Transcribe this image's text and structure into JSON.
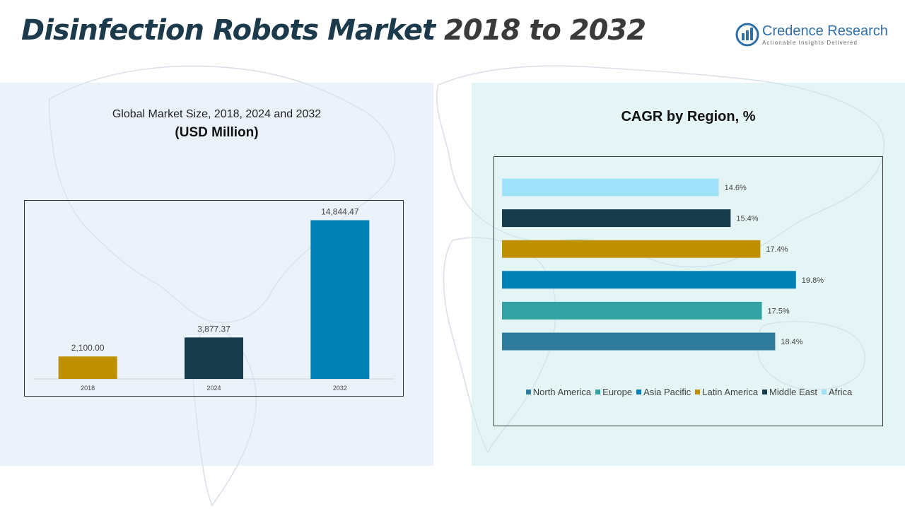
{
  "header": {
    "title_main": "Disinfection Robots Market",
    "title_years": "2018 to 2032"
  },
  "brand": {
    "name": "Credence Research",
    "tagline": "Actionable Insights Delivered",
    "color": "#2f6fa8"
  },
  "left_panel": {
    "subtitle": "Global Market Size, 2018, 2024 and 2032",
    "unit": "(USD Million)"
  },
  "right_panel": {
    "title": "CAGR by Region, %"
  },
  "chart_data": [
    {
      "type": "bar",
      "title": "Global Market Size, 2018, 2024 and 2032",
      "ylabel": "(USD Million)",
      "categories": [
        "2018",
        "2024",
        "2032"
      ],
      "values": [
        2100.0,
        3877.37,
        14844.47
      ],
      "value_labels": [
        "2,100.00",
        "3,877.37",
        "14,844.47"
      ],
      "colors": [
        "#bf9000",
        "#173c4c",
        "#0081b3"
      ],
      "ylim": [
        0,
        16000
      ],
      "grid": false
    },
    {
      "type": "bar",
      "orientation": "horizontal",
      "title": "CAGR by Region, %",
      "categories": [
        "North America",
        "Europe",
        "Asia Pacific",
        "Latin America",
        "Middle East",
        "Africa"
      ],
      "values": [
        18.4,
        17.5,
        19.8,
        17.4,
        15.4,
        14.6
      ],
      "value_labels": [
        "18.4%",
        "17.5%",
        "19.8%",
        "17.4%",
        "15.4%",
        "14.6%"
      ],
      "colors": [
        "#2e7b9d",
        "#33a2a2",
        "#0081b3",
        "#bf9000",
        "#173c4c",
        "#9ee3f9"
      ],
      "xlim": [
        0,
        20
      ],
      "legend_position": "bottom",
      "grid": false
    }
  ]
}
